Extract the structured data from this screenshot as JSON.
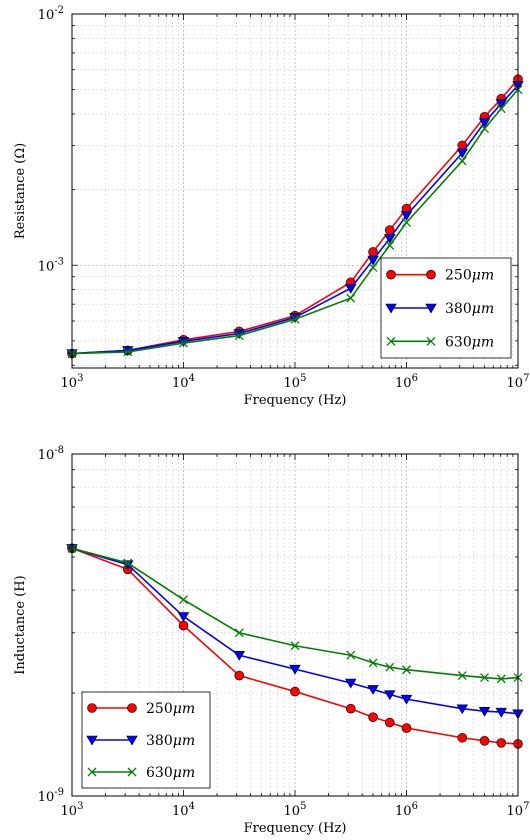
{
  "chart_data": [
    {
      "type": "line",
      "xlabel": "Frequency (Hz)",
      "ylabel": "Resistance (Ω)",
      "xscale": "log",
      "yscale": "log",
      "xlim": [
        1000,
        10000000
      ],
      "ylim": [
        0.00039,
        0.01
      ],
      "grid": true,
      "legend_position": "bottom-right",
      "xticks": [
        {
          "base": "10",
          "exp": "3"
        },
        {
          "base": "10",
          "exp": "4"
        },
        {
          "base": "10",
          "exp": "5"
        },
        {
          "base": "10",
          "exp": "6"
        },
        {
          "base": "10",
          "exp": "7"
        }
      ],
      "yticks": [
        {
          "value": 0.001,
          "base": "10",
          "exp": "-3"
        },
        {
          "value": 0.01,
          "base": "10",
          "exp": "-2"
        }
      ],
      "x": [
        1000,
        3162,
        10000,
        31623,
        100000,
        316228,
        501187,
        707946,
        1000000,
        3162278,
        5011872,
        7079458,
        10000000
      ],
      "series": [
        {
          "name": "250μm",
          "label_main": "250",
          "label_unit": "μm",
          "color": "#ff0000",
          "marker": "circle",
          "values": [
            0.000445,
            0.000458,
            0.000505,
            0.000545,
            0.00063,
            0.000855,
            0.00113,
            0.00138,
            0.00168,
            0.003,
            0.0039,
            0.0046,
            0.0055
          ]
        },
        {
          "name": "380μm",
          "label_main": "380",
          "label_unit": "μm",
          "color": "#0000ff",
          "marker": "triangle-down",
          "values": [
            0.000445,
            0.000458,
            0.000498,
            0.000535,
            0.00062,
            0.00081,
            0.00105,
            0.00128,
            0.00158,
            0.0028,
            0.0037,
            0.0044,
            0.0052
          ]
        },
        {
          "name": "630μm",
          "label_main": "630",
          "label_unit": "μm",
          "color": "#008000",
          "marker": "x",
          "values": [
            0.000445,
            0.000452,
            0.00049,
            0.000525,
            0.00061,
            0.00074,
            0.00098,
            0.0012,
            0.00148,
            0.0026,
            0.0035,
            0.0042,
            0.005
          ]
        }
      ]
    },
    {
      "type": "line",
      "xlabel": "Frequency (Hz)",
      "ylabel": "Inductance (H)",
      "xscale": "log",
      "yscale": "log",
      "xlim": [
        1000,
        10000000
      ],
      "ylim": [
        1e-09,
        1e-08
      ],
      "grid": true,
      "legend_position": "bottom-left",
      "xticks": [
        {
          "base": "10",
          "exp": "3"
        },
        {
          "base": "10",
          "exp": "4"
        },
        {
          "base": "10",
          "exp": "5"
        },
        {
          "base": "10",
          "exp": "6"
        },
        {
          "base": "10",
          "exp": "7"
        }
      ],
      "yticks": [
        {
          "value": 1e-09,
          "base": "10",
          "exp": "-9"
        },
        {
          "value": 1e-08,
          "base": "10",
          "exp": "-8"
        }
      ],
      "x": [
        1000,
        3162,
        10000,
        31623,
        100000,
        316228,
        501187,
        707946,
        1000000,
        3162278,
        5011872,
        7079458,
        10000000
      ],
      "series": [
        {
          "name": "250μm",
          "label_main": "250",
          "label_unit": "μm",
          "color": "#ff0000",
          "marker": "circle",
          "values": [
            5.3e-09,
            4.6e-09,
            3.15e-09,
            2.25e-09,
            2.02e-09,
            1.8e-09,
            1.7e-09,
            1.64e-09,
            1.58e-09,
            1.48e-09,
            1.45e-09,
            1.43e-09,
            1.42e-09
          ]
        },
        {
          "name": "380μm",
          "label_main": "380",
          "label_unit": "μm",
          "color": "#0000ff",
          "marker": "triangle-down",
          "values": [
            5.3e-09,
            4.75e-09,
            3.35e-09,
            2.58e-09,
            2.35e-09,
            2.14e-09,
            2.05e-09,
            1.98e-09,
            1.92e-09,
            1.8e-09,
            1.77e-09,
            1.76e-09,
            1.74e-09
          ]
        },
        {
          "name": "630μm",
          "label_main": "630",
          "label_unit": "μm",
          "color": "#008000",
          "marker": "x",
          "values": [
            5.3e-09,
            4.8e-09,
            3.75e-09,
            3e-09,
            2.75e-09,
            2.58e-09,
            2.45e-09,
            2.38e-09,
            2.34e-09,
            2.25e-09,
            2.22e-09,
            2.2e-09,
            2.22e-09
          ]
        }
      ]
    }
  ]
}
